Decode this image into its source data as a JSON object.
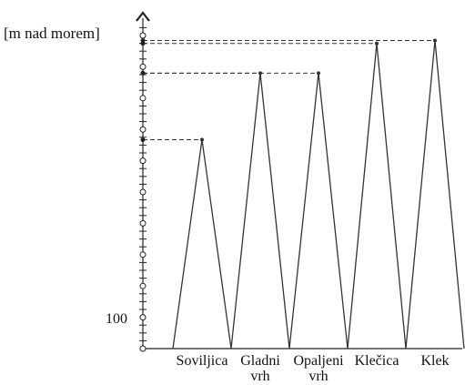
{
  "chart_data": {
    "type": "line",
    "ylabel": "[m nad morem]",
    "y_tick_labels": [
      "100"
    ],
    "categories": [
      "Soviljica",
      "Gladni\nvrh",
      "Opaljeni\nvrh",
      "Klečica",
      "Klek"
    ],
    "values": [
      1410,
      1860,
      1860,
      2060,
      2080
    ],
    "ylim": [
      0,
      2200
    ],
    "grid": false,
    "style": "sawtooth-peaks",
    "colors": {
      "line": "#333333",
      "axis": "#222222",
      "dash": "#333333"
    }
  }
}
